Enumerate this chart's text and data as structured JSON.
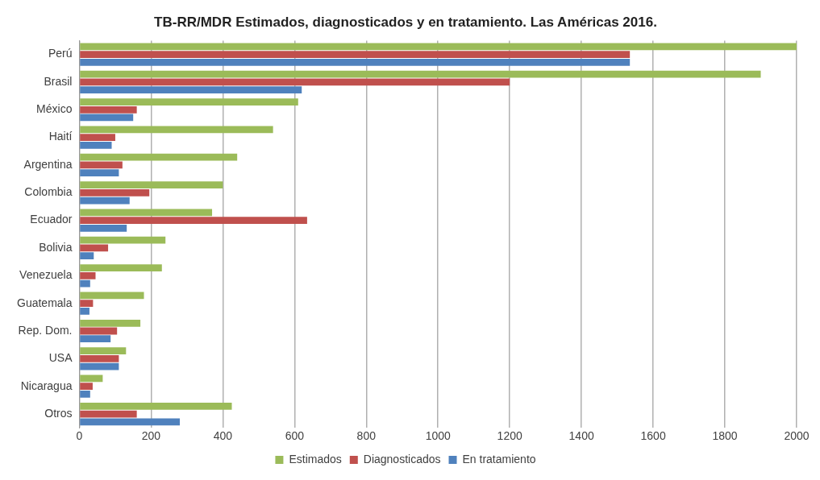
{
  "chart_data": {
    "type": "bar",
    "orientation": "horizontal",
    "title": "TB-RR/MDR Estimados, diagnosticados y en tratamiento. Las Américas 2016.",
    "categories": [
      "Perú",
      "Brasil",
      "México",
      "Haití",
      "Argentina",
      "Colombia",
      "Ecuador",
      "Bolivia",
      "Venezuela",
      "Guatemala",
      "Rep. Dom.",
      "USA",
      "Nicaragua",
      "Otros"
    ],
    "series": [
      {
        "name": "Estimados",
        "color": "#9bbb59",
        "values": [
          2000,
          1900,
          610,
          540,
          440,
          400,
          370,
          240,
          230,
          180,
          170,
          130,
          65,
          425
        ]
      },
      {
        "name": "Diagnosticados",
        "color": "#c0504d",
        "values": [
          1535,
          1200,
          160,
          100,
          120,
          195,
          635,
          80,
          45,
          38,
          105,
          110,
          37,
          160
        ]
      },
      {
        "name": "En tratamiento",
        "color": "#4f81bd",
        "values": [
          1535,
          620,
          150,
          90,
          110,
          140,
          132,
          40,
          30,
          28,
          87,
          110,
          30,
          280
        ]
      }
    ],
    "xlim": [
      0,
      2000
    ],
    "xticks": [
      0,
      200,
      400,
      600,
      800,
      1000,
      1200,
      1400,
      1600,
      1800,
      2000
    ],
    "grid": "x",
    "legend": "bottom"
  }
}
